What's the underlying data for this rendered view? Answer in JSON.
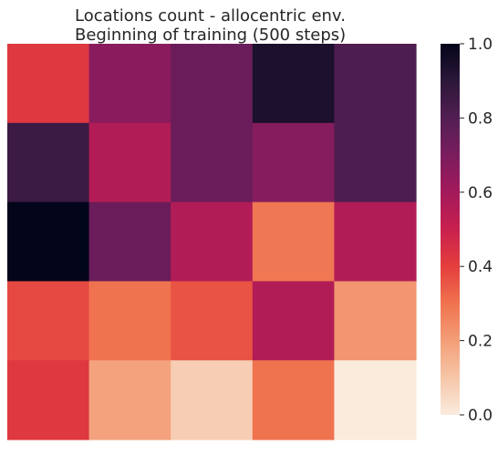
{
  "chart_data": {
    "type": "heatmap",
    "title_lines": [
      "Locations count - allocentric env.",
      "Beginning of training (500 steps)"
    ],
    "xlabel": "",
    "ylabel": "",
    "rows": 5,
    "cols": 5,
    "values": [
      [
        0.42,
        0.66,
        0.74,
        0.94,
        0.81
      ],
      [
        0.86,
        0.56,
        0.74,
        0.67,
        0.81
      ],
      [
        1.0,
        0.74,
        0.56,
        0.29,
        0.56
      ],
      [
        0.38,
        0.3,
        0.36,
        0.56,
        0.22
      ],
      [
        0.42,
        0.19,
        0.08,
        0.3,
        0.0
      ]
    ],
    "colorbar": {
      "min": 0.0,
      "max": 1.0,
      "ticks": [
        0.0,
        0.2,
        0.4,
        0.6,
        0.8,
        1.0
      ],
      "tick_labels": [
        "0.0",
        "0.2",
        "0.4",
        "0.6",
        "0.8",
        "1.0"
      ],
      "colormap": "rocket_r"
    },
    "grid": false
  }
}
